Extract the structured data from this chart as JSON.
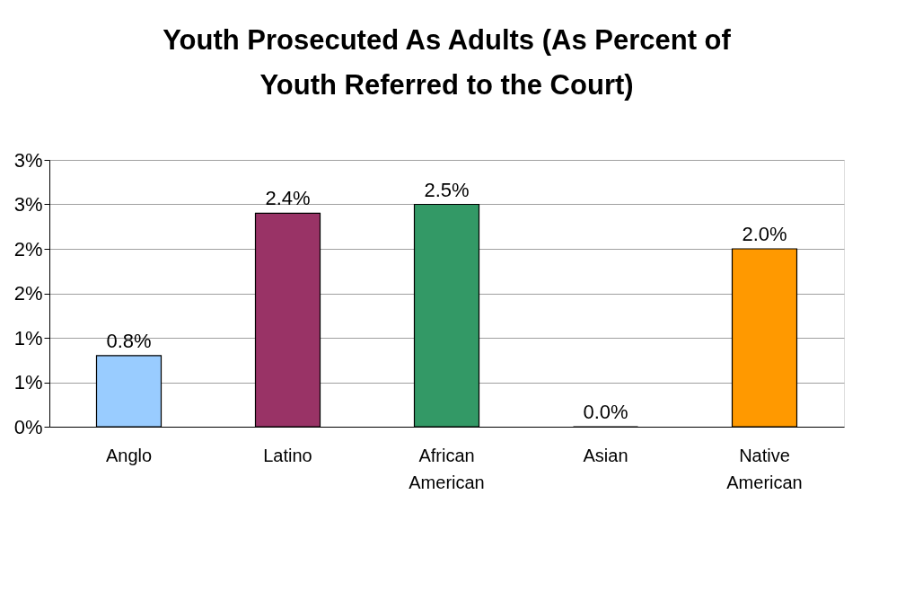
{
  "chart_data": {
    "type": "bar",
    "title": "Youth Prosecuted As Adults (As Percent of Youth Referred to the Court)",
    "categories": [
      "Anglo",
      "Latino",
      "African American",
      "Asian",
      "Native American"
    ],
    "values": [
      0.8,
      2.4,
      2.5,
      0.0,
      2.0
    ],
    "colors": [
      "#99ccff",
      "#993366",
      "#339966",
      "#ffffcc",
      "#ff9900"
    ],
    "value_labels": [
      "0.8%",
      "2.4%",
      "2.5%",
      "0.0%",
      "2.0%"
    ],
    "ylim": [
      0,
      3.0
    ],
    "yticks": [
      {
        "value": 0,
        "label": "0%"
      },
      {
        "value": 0.5,
        "label": "1%"
      },
      {
        "value": 1.0,
        "label": "1%"
      },
      {
        "value": 1.5,
        "label": "2%"
      },
      {
        "value": 2.0,
        "label": "2%"
      },
      {
        "value": 2.5,
        "label": "3%"
      },
      {
        "value": 3.0,
        "label": "3%"
      }
    ],
    "grid": "y"
  }
}
